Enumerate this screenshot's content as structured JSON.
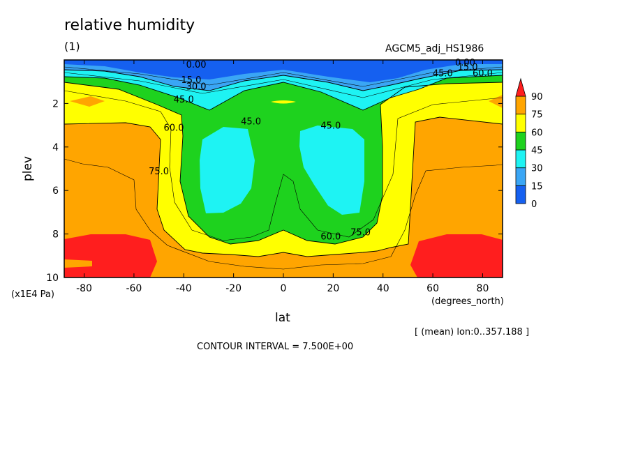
{
  "chart_data": {
    "type": "contour",
    "title": "relative humidity",
    "subtitle": "(1)",
    "source_label": "AGCM5_adj_HS1986",
    "xlabel": "lat",
    "x_units": "(degrees_north)",
    "ylabel": "plev",
    "y_units": "(x1E4 Pa)",
    "xlim": [
      -88,
      88
    ],
    "ylim": [
      10,
      0
    ],
    "x_ticks": [
      "-80",
      "-60",
      "-40",
      "-20",
      "0",
      "20",
      "40",
      "60",
      "80"
    ],
    "x_tick_values": [
      -80,
      -60,
      -40,
      -20,
      0,
      20,
      40,
      60,
      80
    ],
    "y_ticks": [
      "2",
      "4",
      "6",
      "8",
      "10"
    ],
    "y_tick_values": [
      2,
      4,
      6,
      8,
      10
    ],
    "colorbar": {
      "levels": [
        "0",
        "15",
        "30",
        "45",
        "60",
        "75",
        "90"
      ],
      "colors": [
        "#1560f0",
        "#3aa6f5",
        "#1ef3f3",
        "#1ed21e",
        "#ffff00",
        "#ffa500",
        "#ff1e1e"
      ]
    },
    "contour_labels": [
      {
        "text": "0.00",
        "lat": -35,
        "plev": 0.2
      },
      {
        "text": "15.0",
        "lat": -37,
        "plev": 0.9
      },
      {
        "text": "30.0",
        "lat": -35,
        "plev": 1.2
      },
      {
        "text": "45.0",
        "lat": -40,
        "plev": 1.8
      },
      {
        "text": "60.0",
        "lat": -44,
        "plev": 3.1
      },
      {
        "text": "75.0",
        "lat": -50,
        "plev": 5.1
      },
      {
        "text": "45.0",
        "lat": -13,
        "plev": 2.8
      },
      {
        "text": "45.0",
        "lat": 19,
        "plev": 3.0
      },
      {
        "text": "60.0",
        "lat": 19,
        "plev": 8.1
      },
      {
        "text": "75.0",
        "lat": 31,
        "plev": 7.9
      },
      {
        "text": "0.00",
        "lat": 73,
        "plev": 0.1
      },
      {
        "text": "15.0",
        "lat": 74,
        "plev": 0.3
      },
      {
        "text": "45.0",
        "lat": 64,
        "plev": 0.6
      },
      {
        "text": "60.0",
        "lat": 80,
        "plev": 0.6
      }
    ],
    "mean_note": "[ (mean) lon:0..357.188 ]",
    "contour_interval": "CONTOUR INTERVAL = 7.500E+00",
    "colors": {
      "frame": "#000000"
    }
  }
}
